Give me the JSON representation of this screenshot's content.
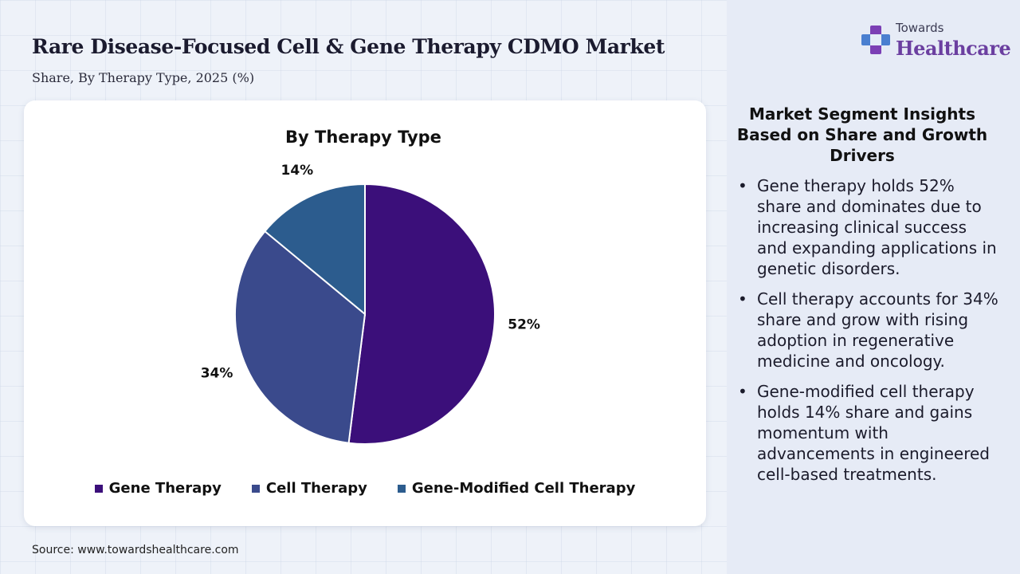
{
  "header": {
    "title": "Rare Disease-Focused Cell & Gene Therapy CDMO Market",
    "subtitle": "Share, By Therapy Type, 2025 (%)"
  },
  "logo": {
    "small": "Towards",
    "big": "Healthcare"
  },
  "source": "Source: www.towardshealthcare.com",
  "insights": {
    "title": "Market Segment Insights Based on Share and Growth Drivers",
    "bullets": [
      "Gene therapy holds 52% share and dominates due to increasing clinical success and expanding applications in genetic disorders.",
      "Cell therapy accounts for 34% share and grow with rising adoption in regenerative medicine and oncology.",
      "Gene-modified cell therapy holds 14% share and gains momentum with advancements in engineered cell-based treatments."
    ]
  },
  "chart_data": {
    "type": "pie",
    "title": "By Therapy Type",
    "categories": [
      "Gene Therapy",
      "Cell Therapy",
      "Gene-Modified Cell Therapy"
    ],
    "values": [
      52,
      34,
      14
    ],
    "labels": [
      "52%",
      "34%",
      "14%"
    ],
    "colors": [
      "#3b0f7a",
      "#3a4a8c",
      "#2c5c8e"
    ],
    "legend_position": "bottom"
  }
}
